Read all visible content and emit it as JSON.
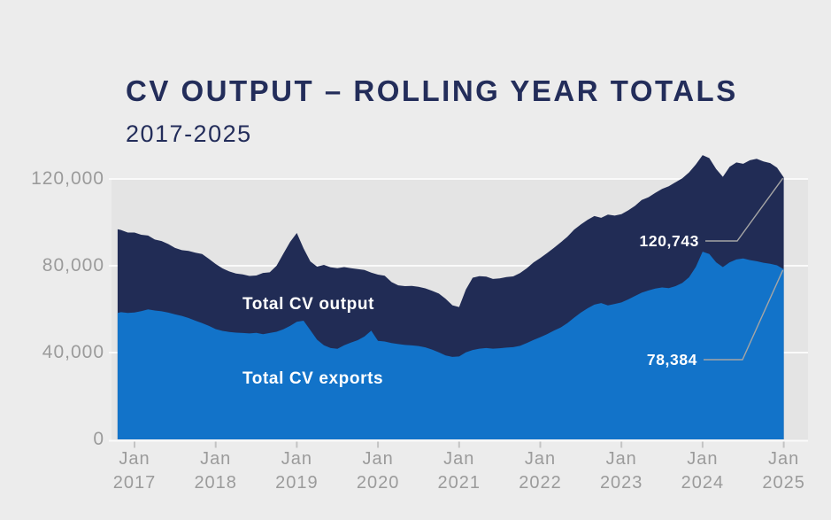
{
  "palette": {
    "page_background": "#ececec",
    "plot_background": "#e4e4e4",
    "gridline": "#fafafa",
    "axis_tick": "#c3c3c3",
    "leader_line": "#a5a5a5",
    "title_color": "#232d5a",
    "axis_text": "#9b9b9b",
    "output_fill": "#212c55",
    "exports_fill": "#1273c9"
  },
  "chart_data": {
    "type": "area",
    "title": "CV OUTPUT – ROLLING YEAR TOTALS",
    "subtitle": "2017-2025",
    "interval": "monthly",
    "x_start": "Oct 2016",
    "x_end": "Jan 2025",
    "ylim": [
      0,
      120000
    ],
    "grid": true,
    "legend_position": "labels-inside-areas",
    "y_ticks": [
      {
        "value": 120000,
        "label": "120,000"
      },
      {
        "value": 80000,
        "label": "80,000"
      },
      {
        "value": 40000,
        "label": "40,000"
      },
      {
        "value": 0,
        "label": "0"
      }
    ],
    "x_tick_labels": [
      {
        "month": "Jan",
        "year": "2017"
      },
      {
        "month": "Jan",
        "year": "2018"
      },
      {
        "month": "Jan",
        "year": "2019"
      },
      {
        "month": "Jan",
        "year": "2020"
      },
      {
        "month": "Jan",
        "year": "2021"
      },
      {
        "month": "Jan",
        "year": "2022"
      },
      {
        "month": "Jan",
        "year": "2023"
      },
      {
        "month": "Jan",
        "year": "2024"
      },
      {
        "month": "Jan",
        "year": "2025"
      }
    ],
    "series": [
      {
        "name": "Total CV output",
        "color": "#212c55",
        "values": [
          96800,
          96500,
          95300,
          95300,
          94300,
          93900,
          92100,
          91400,
          90000,
          88200,
          87200,
          86800,
          86000,
          85400,
          83200,
          80800,
          78800,
          77400,
          76400,
          76000,
          75300,
          75500,
          76700,
          77000,
          80000,
          85500,
          91000,
          95100,
          88000,
          82000,
          79600,
          80400,
          79300,
          78900,
          79400,
          78900,
          78500,
          78100,
          76800,
          75900,
          75400,
          72500,
          71000,
          70600,
          70700,
          70300,
          69600,
          68500,
          67200,
          64800,
          61800,
          61000,
          69000,
          74500,
          75200,
          75000,
          73900,
          74200,
          74800,
          75100,
          76600,
          78800,
          81500,
          83600,
          85800,
          88200,
          90700,
          93400,
          96600,
          99000,
          101200,
          102900,
          102100,
          103600,
          103100,
          103800,
          105500,
          107600,
          110300,
          111600,
          113600,
          115400,
          116600,
          118500,
          120300,
          123000,
          126700,
          131000,
          129600,
          124600,
          121000,
          125600,
          127600,
          127000,
          128600,
          129300,
          128100,
          127300,
          125200,
          120743
        ]
      },
      {
        "name": "Total CV exports",
        "color": "#1273c9",
        "values": [
          58300,
          58600,
          58300,
          58500,
          59100,
          59900,
          59400,
          59000,
          58400,
          57600,
          56900,
          55900,
          54700,
          53600,
          52300,
          50800,
          50000,
          49500,
          49200,
          49000,
          48800,
          49100,
          48500,
          49000,
          49600,
          50700,
          52300,
          54200,
          54700,
          50300,
          45900,
          43400,
          42100,
          41700,
          43400,
          44600,
          45700,
          47400,
          50100,
          45400,
          45100,
          44400,
          43900,
          43500,
          43300,
          43000,
          42400,
          41400,
          40100,
          38700,
          38000,
          38200,
          40100,
          41200,
          41800,
          42100,
          41800,
          42000,
          42300,
          42500,
          43100,
          44400,
          45800,
          47100,
          48500,
          50100,
          51500,
          53600,
          56100,
          58400,
          60400,
          62100,
          62800,
          61700,
          62400,
          63100,
          64500,
          66100,
          67600,
          68600,
          69500,
          70000,
          69700,
          70600,
          72100,
          74700,
          79500,
          86500,
          85400,
          81600,
          79400,
          81600,
          82900,
          83400,
          82600,
          82100,
          81400,
          80900,
          80200,
          78384
        ]
      }
    ],
    "annotations": [
      {
        "label": "120,743",
        "series": "Total CV output",
        "value": 120743,
        "x": "Jan 2025"
      },
      {
        "label": "78,384",
        "series": "Total CV exports",
        "value": 78384,
        "x": "Jan 2025"
      }
    ]
  }
}
